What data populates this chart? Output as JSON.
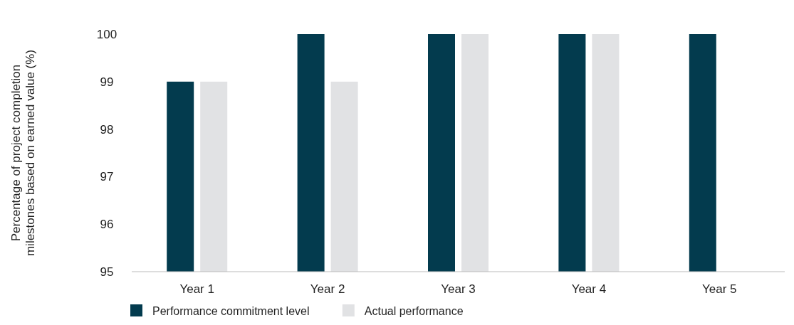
{
  "chart_data": {
    "type": "bar",
    "ylabel": "Percentage of project completion\nmilestones based on earned value (%)",
    "categories": [
      "Year 1",
      "Year 2",
      "Year 3",
      "Year 4",
      "Year 5"
    ],
    "series": [
      {
        "name": "Performance commitment level",
        "color": "#033b4e",
        "values": [
          99,
          100,
          100,
          100,
          100
        ]
      },
      {
        "name": "Actual performance",
        "color": "#e1e2e4",
        "values": [
          99,
          99,
          100,
          100,
          null
        ]
      }
    ],
    "ylim": [
      95,
      100
    ],
    "yticks": [
      95,
      96,
      97,
      98,
      99,
      100
    ],
    "grid": false,
    "legend": "bottom left"
  }
}
